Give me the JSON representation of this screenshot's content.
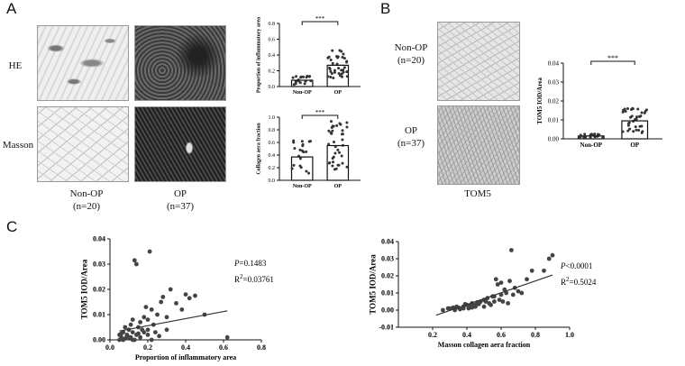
{
  "panels": {
    "a": "A",
    "b": "B",
    "c": "C"
  },
  "panel_a": {
    "row_labels": [
      "HE",
      "Masson"
    ],
    "col_labels": [
      {
        "name": "Non-OP",
        "n": "(n=20)"
      },
      {
        "name": "OP",
        "n": "(n=37)"
      }
    ]
  },
  "panel_b": {
    "row_labels": [
      {
        "name": "Non-OP",
        "n": "(n=20)"
      },
      {
        "name": "OP",
        "n": "(n=37)"
      }
    ],
    "stain_label": "TOM5"
  },
  "chart_data": [
    {
      "id": "a-top",
      "type": "bar",
      "categories": [
        "Non-OP",
        "OP"
      ],
      "values": [
        0.08,
        0.27
      ],
      "ylabel": "Proportion of inflammatory area",
      "ylim": [
        0,
        0.8
      ],
      "yticks": [
        "0.0",
        "0.2",
        "0.4",
        "0.6",
        "0.8"
      ],
      "significance": "***"
    },
    {
      "id": "a-bottom",
      "type": "bar",
      "categories": [
        "Non-OP",
        "OP"
      ],
      "values": [
        0.37,
        0.55
      ],
      "ylabel": "Collagen aera fraction",
      "ylim": [
        0,
        1.0
      ],
      "yticks": [
        "0.0",
        "0.2",
        "0.4",
        "0.6",
        "0.8",
        "1.0"
      ],
      "significance": "***"
    },
    {
      "id": "b",
      "type": "bar",
      "categories": [
        "Non-OP",
        "OP"
      ],
      "values": [
        0.0015,
        0.0095
      ],
      "ylabel": "TOM5 IOD/Area",
      "ylim": [
        0,
        0.04
      ],
      "yticks": [
        "0.00",
        "0.01",
        "0.02",
        "0.03",
        "0.04"
      ],
      "significance": "***"
    },
    {
      "id": "c-left",
      "type": "scatter",
      "xlabel": "Proportion of inflammatory area",
      "ylabel": "TOM5 IOD/Area",
      "xlim": [
        0,
        0.8
      ],
      "ylim": [
        0,
        0.04
      ],
      "xticks": [
        "0.0",
        "0.2",
        "0.4",
        "0.6",
        "0.8"
      ],
      "yticks": [
        "0.00",
        "0.01",
        "0.02",
        "0.03",
        "0.04"
      ],
      "p_text": "P=0.1483",
      "r2_text": "R2=0.03761",
      "fit": {
        "x": [
          0.05,
          0.62
        ],
        "y": [
          0.0035,
          0.0115
        ]
      },
      "points": {
        "x": [
          0.05,
          0.06,
          0.07,
          0.08,
          0.08,
          0.09,
          0.1,
          0.1,
          0.11,
          0.12,
          0.12,
          0.13,
          0.14,
          0.15,
          0.15,
          0.16,
          0.17,
          0.18,
          0.19,
          0.2,
          0.2,
          0.21,
          0.22,
          0.23,
          0.25,
          0.27,
          0.28,
          0.3,
          0.32,
          0.35,
          0.38,
          0.4,
          0.42,
          0.45,
          0.5,
          0.05,
          0.07,
          0.09,
          0.11,
          0.13,
          0.14,
          0.16,
          0.18,
          0.2,
          0.22,
          0.24,
          0.26,
          0.3,
          0.12,
          0.62,
          0.06
        ],
        "y": [
          0.002,
          0.001,
          0.003,
          0.0005,
          0.005,
          0.002,
          0.004,
          0.001,
          0.006,
          0.003,
          0.008,
          0.0315,
          0.03,
          0.0025,
          0.005,
          0.007,
          0.004,
          0.009,
          0.013,
          0.004,
          0.008,
          0.035,
          0.012,
          0.006,
          0.01,
          0.015,
          0.017,
          0.009,
          0.02,
          0.0145,
          0.012,
          0.018,
          0.0165,
          0.0175,
          0.01,
          0.0,
          0.0,
          0.0015,
          0.001,
          0.0,
          0.002,
          0.001,
          0.003,
          0.002,
          0.0,
          0.003,
          0.0015,
          0.004,
          0.0,
          0.001,
          0.0025
        ]
      }
    },
    {
      "id": "c-right",
      "type": "scatter",
      "xlabel": "Masson  collagen aera fraction",
      "ylabel": "TOM5  IOD/Area",
      "xlim": [
        0,
        1.0
      ],
      "ylim": [
        -0.01,
        0.04
      ],
      "xticks": [
        "0.2",
        "0.4",
        "0.6",
        "0.8",
        "1.0"
      ],
      "yticks": [
        "-0.01",
        "0.00",
        "0.01",
        "0.02",
        "0.03",
        "0.04"
      ],
      "p_text": "P<0.0001",
      "r2_text": "R2=0.5024",
      "fit": {
        "x": [
          0.22,
          0.9
        ],
        "y": [
          -0.003,
          0.0205
        ]
      },
      "points": {
        "x": [
          0.26,
          0.29,
          0.32,
          0.34,
          0.36,
          0.38,
          0.4,
          0.41,
          0.43,
          0.44,
          0.45,
          0.46,
          0.48,
          0.5,
          0.5,
          0.52,
          0.53,
          0.55,
          0.56,
          0.57,
          0.58,
          0.6,
          0.6,
          0.62,
          0.63,
          0.65,
          0.66,
          0.68,
          0.7,
          0.72,
          0.75,
          0.78,
          0.85,
          0.88,
          0.9,
          0.3,
          0.35,
          0.42,
          0.47,
          0.54,
          0.59,
          0.61,
          0.64,
          0.67,
          0.33,
          0.38,
          0.45,
          0.51,
          0.56,
          0.39,
          0.43
        ],
        "y": [
          0.0,
          0.001,
          0.0015,
          0.002,
          0.0005,
          0.002,
          0.003,
          0.001,
          0.004,
          0.0025,
          0.003,
          0.0045,
          0.005,
          0.006,
          0.002,
          0.007,
          0.004,
          0.008,
          0.005,
          0.018,
          0.015,
          0.009,
          0.016,
          0.012,
          0.01,
          0.017,
          0.035,
          0.013,
          0.011,
          0.01,
          0.018,
          0.023,
          0.023,
          0.03,
          0.032,
          0.001,
          0.0015,
          0.0025,
          0.0035,
          0.003,
          0.006,
          0.005,
          0.004,
          0.009,
          0.0,
          0.001,
          0.002,
          0.005,
          0.008,
          0.0035,
          0.0015
        ]
      }
    }
  ]
}
